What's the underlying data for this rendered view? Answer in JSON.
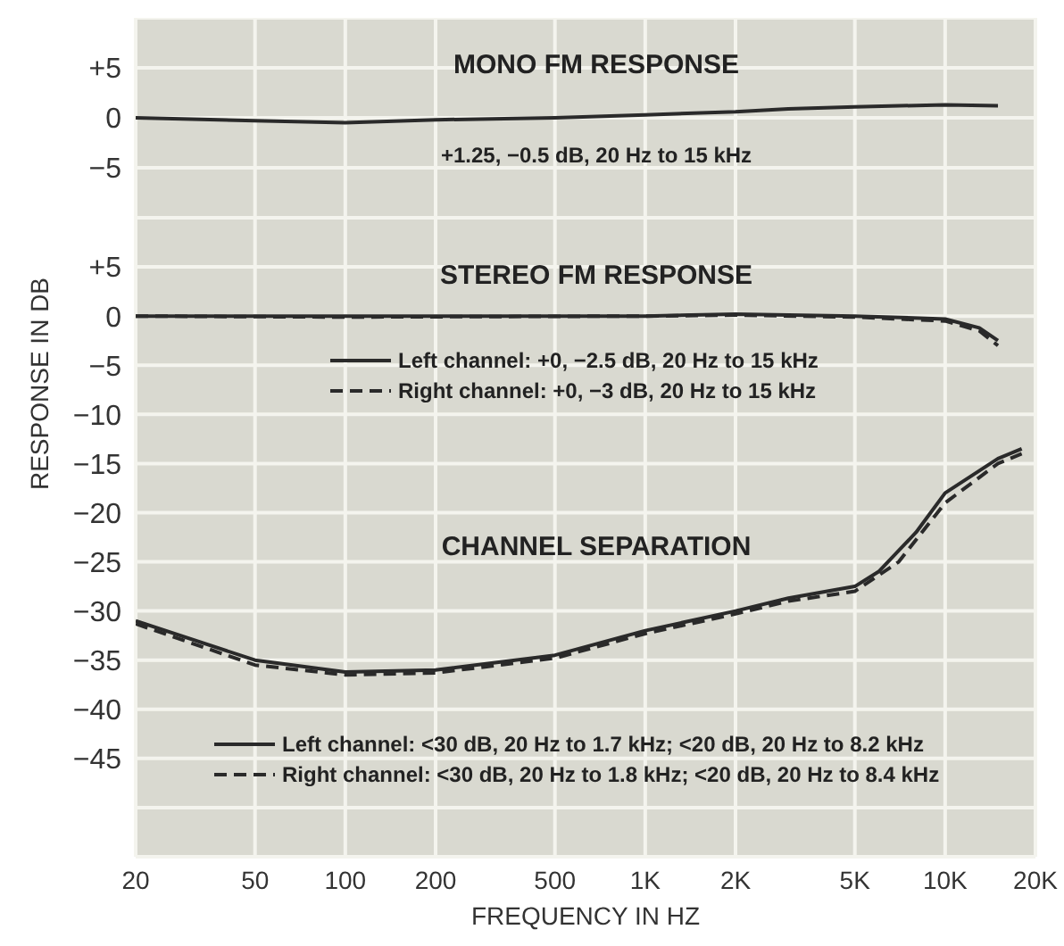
{
  "chart_data": [
    {
      "type": "line",
      "title": "MONO FM RESPONSE",
      "annotations": [
        "+1.25, −0.5 dB, 20 Hz to 15 kHz"
      ],
      "log": "x",
      "grid": true,
      "marker": "none",
      "tick_labels": "y",
      "xlim": [
        20,
        20000
      ],
      "xticks": [
        {
          "value": 20,
          "label": null
        },
        {
          "value": 50,
          "label": null
        },
        {
          "value": 100,
          "label": null
        },
        {
          "value": 200,
          "label": null
        },
        {
          "value": 500,
          "label": null
        },
        {
          "value": 1000,
          "label": null
        },
        {
          "value": 2000,
          "label": null
        },
        {
          "value": 5000,
          "label": null
        },
        {
          "value": 10000,
          "label": null
        },
        {
          "value": 20000,
          "label": null
        }
      ],
      "ylim": [
        -10,
        10
      ],
      "yticks": [
        {
          "value": 5,
          "label": "+5"
        },
        0,
        {
          "value": -5,
          "label": "−5"
        }
      ],
      "series": [
        {
          "color": "#2a2a2a",
          "x": [
            20,
            50,
            100,
            200,
            500,
            1000,
            2000,
            3000,
            5000,
            10000,
            15000
          ],
          "values": [
            0,
            -0.3,
            -0.5,
            -0.2,
            0,
            0.3,
            0.6,
            0.9,
            1.1,
            1.3,
            1.2
          ]
        }
      ]
    },
    {
      "type": "line",
      "annotations": [
        "STEREO FM RESPONSE",
        "CHANNEL SEPARATION"
      ],
      "xlabel": "FREQUENCY IN HZ",
      "ylabel": "RESPONSE IN DB",
      "log": "x",
      "grid": true,
      "marker": "none",
      "legend": "center",
      "xlim": [
        20,
        20000
      ],
      "xticks": [
        20,
        50,
        100,
        200,
        500,
        {
          "value": 1000,
          "label": "1K"
        },
        {
          "value": 2000,
          "label": "2K"
        },
        {
          "value": 5000,
          "label": "5K"
        },
        {
          "value": 10000,
          "label": "10K"
        },
        {
          "value": 20000,
          "label": "20K"
        }
      ],
      "ylim": [
        -55,
        10
      ],
      "yticks": [
        {
          "value": 5,
          "label": "+5"
        },
        0,
        {
          "value": -5,
          "label": "−5"
        },
        {
          "value": -10,
          "label": "−10"
        },
        {
          "value": -15,
          "label": "−15"
        },
        {
          "value": -20,
          "label": "−20"
        },
        {
          "value": -25,
          "label": "−25"
        },
        {
          "value": -30,
          "label": "−30"
        },
        {
          "value": -35,
          "label": "−35"
        },
        {
          "value": -40,
          "label": "−40"
        },
        {
          "value": -45,
          "label": "−45"
        }
      ],
      "series": [
        {
          "name": "Left channel: +0, −2.5 dB, 20 Hz to 15 kHz",
          "color": "#2a2a2a",
          "line_style": "solid",
          "x": [
            20,
            100,
            1000,
            2000,
            5000,
            10000,
            13000,
            15000
          ],
          "values": [
            0,
            0,
            0,
            0.2,
            0,
            -0.3,
            -1.2,
            -2.5
          ]
        },
        {
          "name": "Right channel: +0, −3 dB, 20 Hz to 15 kHz",
          "color": "#2a2a2a",
          "line_style": "dashed",
          "x": [
            20,
            100,
            1000,
            2000,
            5000,
            10000,
            13000,
            15000
          ],
          "values": [
            0,
            -0.1,
            0,
            0.1,
            -0.1,
            -0.5,
            -1.5,
            -3
          ]
        },
        {
          "name": "Left channel: <30 dB, 20 Hz to 1.7 kHz; <20 dB, 20 Hz to 8.2 kHz",
          "color": "#2a2a2a",
          "line_style": "solid",
          "x": [
            20,
            50,
            100,
            200,
            500,
            1000,
            2000,
            3000,
            5000,
            6000,
            8000,
            10000,
            15000,
            18000
          ],
          "values": [
            -31,
            -35,
            -36.2,
            -36,
            -34.5,
            -32,
            -30,
            -28.7,
            -27.5,
            -26,
            -22,
            -18,
            -14.5,
            -13.5
          ]
        },
        {
          "name": "Right channel: <30 dB, 20 Hz to 1.8 kHz; <20 dB, 20 Hz to 8.4 kHz",
          "color": "#2a2a2a",
          "line_style": "dashed",
          "x": [
            20,
            50,
            100,
            200,
            500,
            1000,
            2000,
            3000,
            5000,
            7000,
            10000,
            15000,
            18000
          ],
          "values": [
            -31.3,
            -35.5,
            -36.5,
            -36.3,
            -34.8,
            -32.3,
            -30.3,
            -29,
            -28,
            -25,
            -19,
            -15,
            -14
          ]
        }
      ]
    }
  ]
}
